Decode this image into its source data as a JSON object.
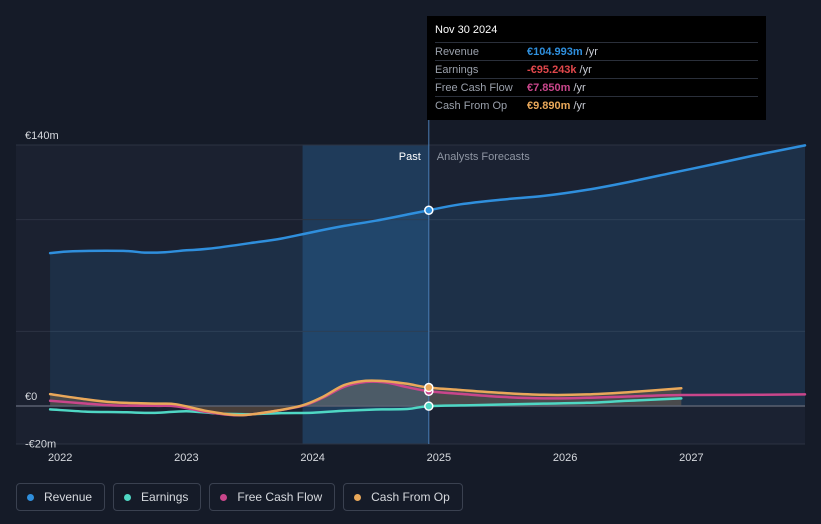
{
  "tooltip": {
    "date": "Nov 30 2024",
    "rows": [
      {
        "label": "Revenue",
        "value": "€104.993m",
        "unit": "/yr",
        "color": "#2f8fdd"
      },
      {
        "label": "Earnings",
        "value": "-€95.243k",
        "unit": "/yr",
        "color": "#e0474b"
      },
      {
        "label": "Free Cash Flow",
        "value": "€7.850m",
        "unit": "/yr",
        "color": "#c9468b"
      },
      {
        "label": "Cash From Op",
        "value": "€9.890m",
        "unit": "/yr",
        "color": "#e9a85a"
      }
    ]
  },
  "labels": {
    "past": "Past",
    "forecast": "Analysts Forecasts"
  },
  "legend": [
    {
      "label": "Revenue",
      "color": "#2f8fdd"
    },
    {
      "label": "Earnings",
      "color": "#4fd7c4"
    },
    {
      "label": "Free Cash Flow",
      "color": "#c9468b"
    },
    {
      "label": "Cash From Op",
      "color": "#e9a85a"
    }
  ],
  "chart_data": {
    "type": "line",
    "ylim": [
      -20,
      140
    ],
    "y_ticks": [
      {
        "value": 140,
        "label": "€140m"
      },
      {
        "value": 0,
        "label": "€0"
      },
      {
        "value": -20,
        "label": "-€20m"
      }
    ],
    "x_ticks": [
      {
        "value": 2022,
        "label": "2022"
      },
      {
        "value": 2023,
        "label": "2023"
      },
      {
        "value": 2024,
        "label": "2024"
      },
      {
        "value": 2025,
        "label": "2025"
      },
      {
        "value": 2026,
        "label": "2026"
      },
      {
        "value": 2027,
        "label": "2027"
      }
    ],
    "xlim": [
      2021.65,
      2027.9
    ],
    "past_range": [
      2023.92,
      2024.92
    ],
    "divider_x": 2024.92,
    "series": [
      {
        "name": "Revenue",
        "color": "#2f8fdd",
        "fill": true,
        "points": [
          [
            2021.92,
            82
          ],
          [
            2022.1,
            83
          ],
          [
            2022.5,
            83.2
          ],
          [
            2022.67,
            82.3
          ],
          [
            2022.83,
            82.5
          ],
          [
            2023.0,
            83.5
          ],
          [
            2023.17,
            84.3
          ],
          [
            2023.5,
            87.3
          ],
          [
            2023.75,
            89.8
          ],
          [
            2024.0,
            93.3
          ],
          [
            2024.25,
            96.6
          ],
          [
            2024.5,
            99.4
          ],
          [
            2024.75,
            102.7
          ],
          [
            2024.92,
            105.0
          ],
          [
            2025.17,
            108.2
          ],
          [
            2025.5,
            110.7
          ],
          [
            2025.83,
            112.7
          ],
          [
            2026.17,
            115.9
          ],
          [
            2026.5,
            120.1
          ],
          [
            2026.83,
            124.8
          ],
          [
            2027.17,
            129.6
          ],
          [
            2027.5,
            134.4
          ],
          [
            2027.9,
            139.8
          ]
        ],
        "marker_at": [
          2024.92,
          105.0
        ]
      },
      {
        "name": "Earnings",
        "color": "#4fd7c4",
        "fill": false,
        "points": [
          [
            2021.92,
            -1.8
          ],
          [
            2022.2,
            -3.0
          ],
          [
            2022.5,
            -3.3
          ],
          [
            2022.75,
            -3.7
          ],
          [
            2023.0,
            -2.8
          ],
          [
            2023.25,
            -4.0
          ],
          [
            2023.5,
            -4.4
          ],
          [
            2023.75,
            -3.8
          ],
          [
            2024.0,
            -3.6
          ],
          [
            2024.25,
            -2.6
          ],
          [
            2024.5,
            -1.9
          ],
          [
            2024.75,
            -1.6
          ],
          [
            2024.92,
            -0.1
          ],
          [
            2025.25,
            0.4
          ],
          [
            2025.5,
            0.8
          ],
          [
            2025.83,
            1.3
          ],
          [
            2026.17,
            1.7
          ],
          [
            2026.5,
            2.8
          ],
          [
            2026.92,
            4.1
          ]
        ],
        "marker_at": [
          2024.92,
          -0.1
        ]
      },
      {
        "name": "Free Cash Flow",
        "color": "#c9468b",
        "fill": false,
        "points": [
          [
            2021.92,
            2.8
          ],
          [
            2022.17,
            1.5
          ],
          [
            2022.42,
            0.3
          ],
          [
            2022.75,
            0.1
          ],
          [
            2022.92,
            -0.2
          ],
          [
            2023.17,
            -3.3
          ],
          [
            2023.42,
            -5.0
          ],
          [
            2023.67,
            -3.0
          ],
          [
            2023.92,
            0.1
          ],
          [
            2024.08,
            4.4
          ],
          [
            2024.25,
            10.3
          ],
          [
            2024.42,
            12.9
          ],
          [
            2024.58,
            12.6
          ],
          [
            2024.75,
            10.1
          ],
          [
            2024.92,
            7.9
          ],
          [
            2025.17,
            6.5
          ],
          [
            2025.5,
            4.9
          ],
          [
            2025.83,
            4.1
          ],
          [
            2026.17,
            4.4
          ],
          [
            2026.5,
            5.1
          ],
          [
            2026.92,
            5.9
          ],
          [
            2027.5,
            6.0
          ],
          [
            2027.9,
            6.2
          ]
        ],
        "marker_at": [
          2024.92,
          7.9
        ]
      },
      {
        "name": "Cash From Op",
        "color": "#e9a85a",
        "fill": true,
        "points": [
          [
            2021.92,
            6.4
          ],
          [
            2022.17,
            3.9
          ],
          [
            2022.42,
            2.0
          ],
          [
            2022.75,
            1.3
          ],
          [
            2022.92,
            0.9
          ],
          [
            2023.17,
            -2.8
          ],
          [
            2023.42,
            -4.9
          ],
          [
            2023.67,
            -3.0
          ],
          [
            2023.92,
            0.4
          ],
          [
            2024.08,
            4.9
          ],
          [
            2024.25,
            11.2
          ],
          [
            2024.42,
            13.5
          ],
          [
            2024.58,
            13.3
          ],
          [
            2024.75,
            11.9
          ],
          [
            2024.92,
            9.9
          ],
          [
            2025.17,
            8.6
          ],
          [
            2025.5,
            7.0
          ],
          [
            2025.83,
            6.0
          ],
          [
            2026.17,
            6.2
          ],
          [
            2026.5,
            7.4
          ],
          [
            2026.92,
            9.5
          ]
        ],
        "marker_at": [
          2024.92,
          9.9
        ]
      }
    ]
  }
}
